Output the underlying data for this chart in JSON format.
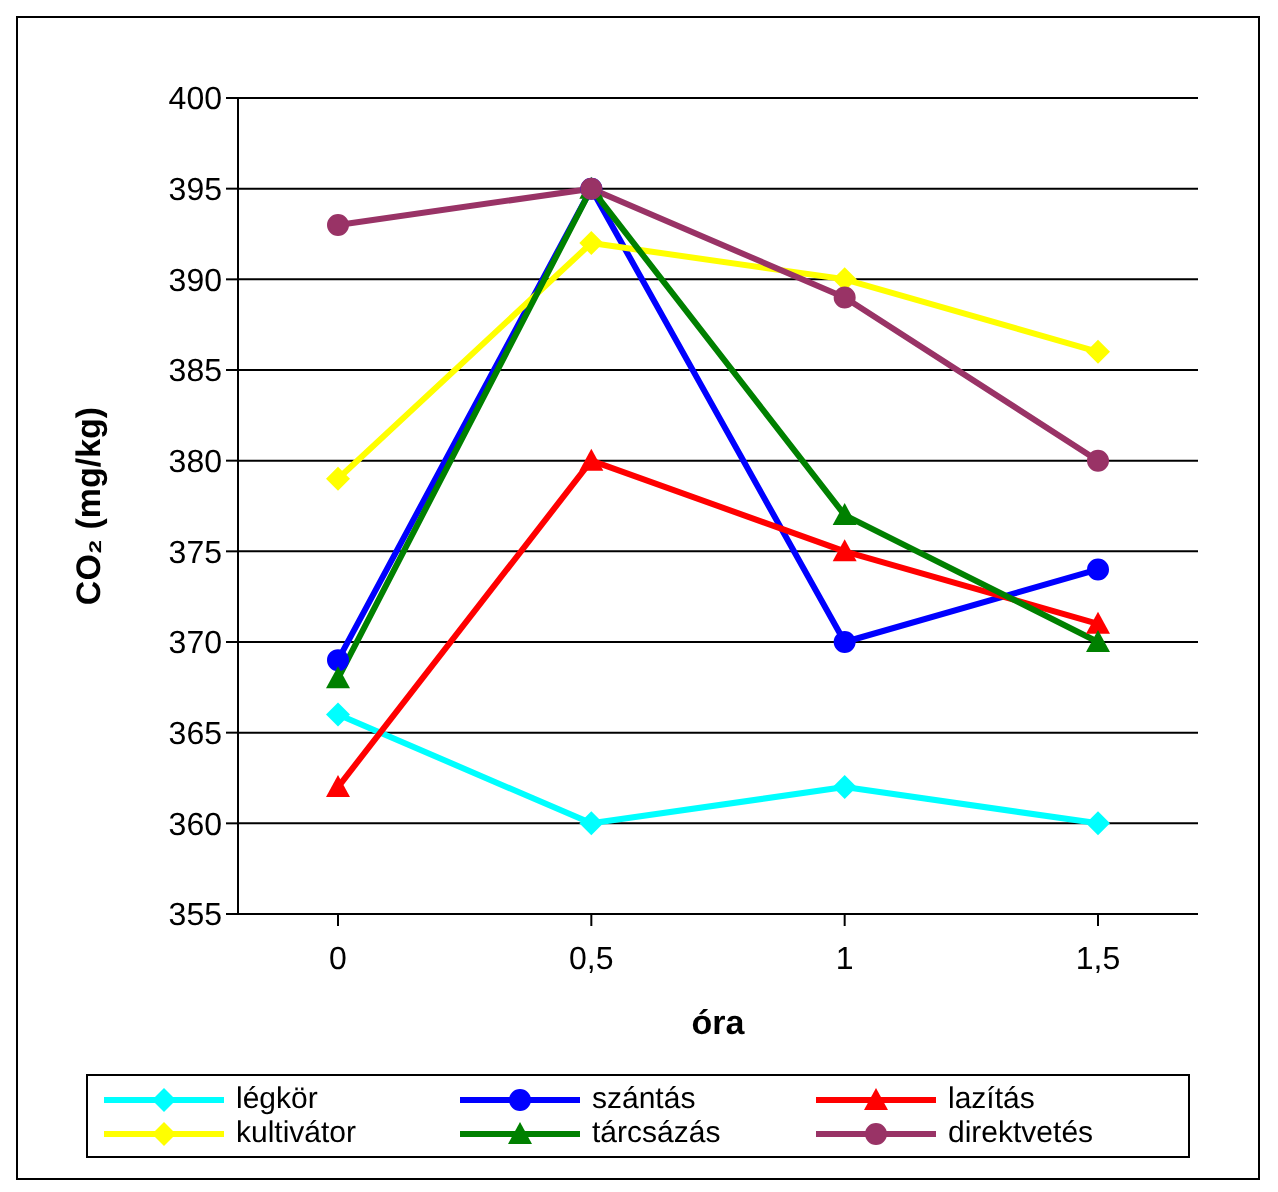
{
  "chart_data": {
    "type": "line",
    "xlabel": "óra",
    "ylabel": "CO₂ (mg/kg)",
    "categories": [
      "0",
      "0,5",
      "1",
      "1,5"
    ],
    "ylim": [
      355,
      400
    ],
    "yticks": [
      355,
      360,
      365,
      370,
      375,
      380,
      385,
      390,
      395,
      400
    ],
    "grid": "y",
    "legend": "bottom",
    "series": [
      {
        "name": "légkör",
        "color": "#00ffff",
        "marker": "diamond",
        "values": [
          366,
          360,
          362,
          360
        ]
      },
      {
        "name": "szántás",
        "color": "#0000ff",
        "marker": "circle",
        "values": [
          369,
          395,
          370,
          374
        ]
      },
      {
        "name": "lazítás",
        "color": "#ff0000",
        "marker": "triangle",
        "values": [
          362,
          380,
          375,
          371
        ]
      },
      {
        "name": "kultivátor",
        "color": "#ffff00",
        "marker": "diamond",
        "values": [
          379,
          392,
          390,
          386
        ]
      },
      {
        "name": "tárcsázás",
        "color": "#008000",
        "marker": "triangle",
        "values": [
          368,
          395,
          377,
          370
        ]
      },
      {
        "name": "direktvetés",
        "color": "#993366",
        "marker": "circle",
        "values": [
          393,
          395,
          389,
          380
        ]
      }
    ]
  }
}
